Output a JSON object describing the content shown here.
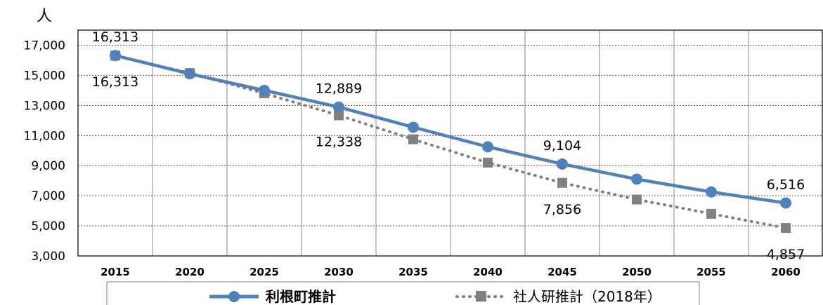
{
  "chart_data": {
    "type": "line",
    "unit_label": "人",
    "x": [
      "2015",
      "2020",
      "2025",
      "2030",
      "2035",
      "2040",
      "2045",
      "2050",
      "2055",
      "2060"
    ],
    "ylim": [
      3000,
      18000
    ],
    "yticks": [
      "3,000",
      "5,000",
      "7,000",
      "9,000",
      "11,000",
      "13,000",
      "15,000",
      "17,000"
    ],
    "ytick_values": [
      3000,
      5000,
      7000,
      9000,
      11000,
      13000,
      15000,
      17000
    ],
    "grid": true,
    "legend_position": "bottom",
    "series": [
      {
        "name": "利根町推計",
        "color": "#4f81bd",
        "marker": "circle",
        "line_style": "solid",
        "values": [
          16313,
          15100,
          14000,
          12889,
          11550,
          10250,
          9104,
          8100,
          7250,
          6516
        ],
        "labels": [
          {
            "index": 0,
            "text": "16,313"
          },
          {
            "index": 3,
            "text": "12,889"
          },
          {
            "index": 6,
            "text": "9,104"
          },
          {
            "index": 9,
            "text": "6,516"
          }
        ]
      },
      {
        "name": "社人研推計（2018年）",
        "color": "#808080",
        "marker": "square",
        "line_style": "dotted",
        "values": [
          16313,
          15150,
          13800,
          12338,
          10750,
          9200,
          7856,
          6750,
          5800,
          4857
        ],
        "labels": [
          {
            "index": 0,
            "text": "16,313"
          },
          {
            "index": 3,
            "text": "12,338"
          },
          {
            "index": 6,
            "text": "7,856"
          },
          {
            "index": 9,
            "text": "4,857"
          }
        ]
      }
    ]
  }
}
